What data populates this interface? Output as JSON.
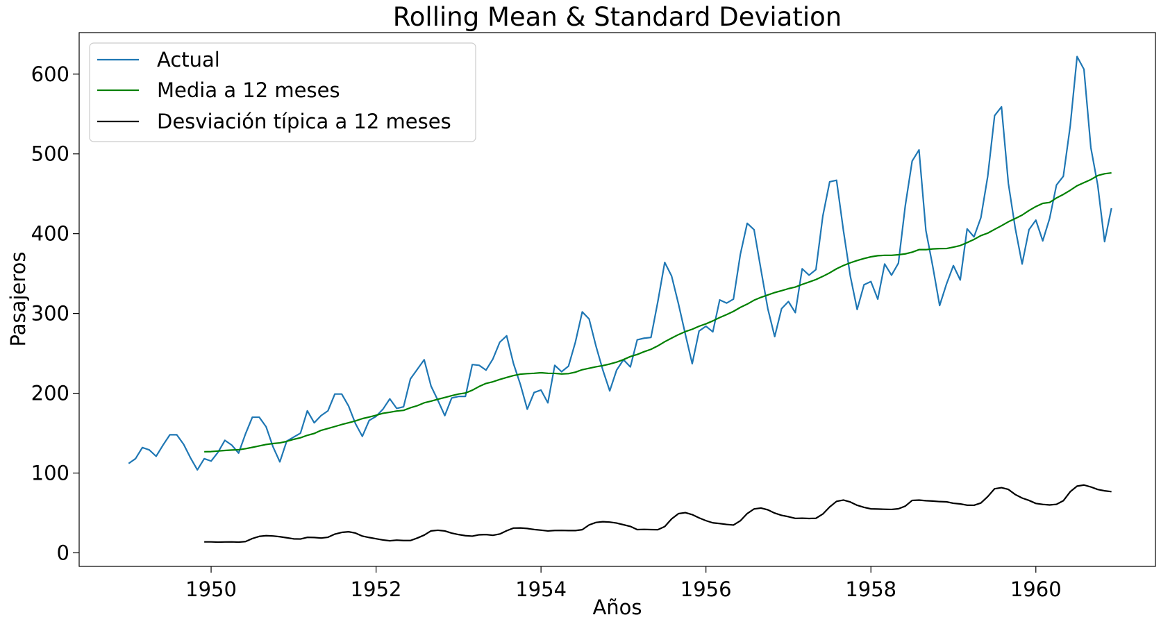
{
  "chart_data": {
    "type": "line",
    "title": "Rolling Mean & Standard Deviation",
    "xlabel": "Años",
    "ylabel": "Pasajeros",
    "xlim": [
      1948.4,
      1961.45
    ],
    "ylim": [
      -17,
      652
    ],
    "x_ticks": [
      1950,
      1952,
      1954,
      1956,
      1958,
      1960
    ],
    "y_ticks": [
      0,
      100,
      200,
      300,
      400,
      500,
      600
    ],
    "grid": false,
    "legend_position": "top-left",
    "start": "1949-01",
    "series": [
      {
        "name": "Actual",
        "color": "#1f77b4",
        "values": [
          112,
          118,
          132,
          129,
          121,
          135,
          148,
          148,
          136,
          119,
          104,
          118,
          115,
          126,
          141,
          135,
          125,
          149,
          170,
          170,
          158,
          133,
          114,
          140,
          145,
          150,
          178,
          163,
          172,
          178,
          199,
          199,
          184,
          162,
          146,
          166,
          171,
          180,
          193,
          181,
          183,
          218,
          230,
          242,
          209,
          191,
          172,
          194,
          196,
          196,
          236,
          235,
          229,
          243,
          264,
          272,
          237,
          211,
          180,
          201,
          204,
          188,
          235,
          227,
          234,
          264,
          302,
          293,
          259,
          229,
          203,
          229,
          242,
          233,
          267,
          269,
          270,
          315,
          364,
          347,
          312,
          274,
          237,
          278,
          284,
          277,
          317,
          313,
          318,
          374,
          413,
          405,
          355,
          306,
          271,
          306,
          315,
          301,
          356,
          348,
          355,
          422,
          465,
          467,
          404,
          347,
          305,
          336,
          340,
          318,
          362,
          348,
          363,
          435,
          491,
          505,
          404,
          359,
          310,
          337,
          360,
          342,
          406,
          396,
          420,
          472,
          548,
          559,
          463,
          407,
          362,
          405,
          417,
          391,
          419,
          461,
          472,
          535,
          622,
          606,
          508,
          461,
          390,
          432
        ]
      },
      {
        "name": "Media a 12 meses",
        "color": "#008000",
        "values": [
          null,
          null,
          null,
          null,
          null,
          null,
          null,
          null,
          null,
          null,
          null,
          126.7,
          126.9,
          127.6,
          128.3,
          128.8,
          129.2,
          130.5,
          132.2,
          134.0,
          135.8,
          137.0,
          137.8,
          139.7,
          142.2,
          144.2,
          147.3,
          149.6,
          153.5,
          155.9,
          158.3,
          160.8,
          163.0,
          165.3,
          168.2,
          170.2,
          172.4,
          174.9,
          176.2,
          177.7,
          178.6,
          181.8,
          184.4,
          188.0,
          190.1,
          192.5,
          194.7,
          197.0,
          199.0,
          200.3,
          203.8,
          208.5,
          212.3,
          214.4,
          217.3,
          219.8,
          222.2,
          223.9,
          224.6,
          225.0,
          225.7,
          225.0,
          224.9,
          224.2,
          224.6,
          226.4,
          229.5,
          231.3,
          233.2,
          234.7,
          236.6,
          239.0,
          242.2,
          246.0,
          248.6,
          252.1,
          255.1,
          259.4,
          264.6,
          269.1,
          273.5,
          277.3,
          280.2,
          284.0,
          287.0,
          290.7,
          294.9,
          298.6,
          302.6,
          307.6,
          311.7,
          316.6,
          320.2,
          323.2,
          326.2,
          328.5,
          331.1,
          333.1,
          336.4,
          339.4,
          342.5,
          346.5,
          350.9,
          356.0,
          360.1,
          363.5,
          366.4,
          368.9,
          371.0,
          372.4,
          372.9,
          372.9,
          373.6,
          374.7,
          376.8,
          380.0,
          380.0,
          380.9,
          381.3,
          381.4,
          383.1,
          385.1,
          388.8,
          392.8,
          397.6,
          400.7,
          405.4,
          410.0,
          414.9,
          419.0,
          423.3,
          429.0,
          434.0,
          438.0,
          439.1,
          444.8,
          449.2,
          454.4,
          460.1,
          464.0,
          467.8,
          472.8,
          475.1,
          476.2
        ]
      },
      {
        "name": "Desviación típica a 12 meses",
        "color": "#000000",
        "values": [
          null,
          null,
          null,
          null,
          null,
          null,
          null,
          null,
          null,
          null,
          null,
          13.7,
          13.7,
          13.4,
          13.6,
          13.7,
          13.4,
          14.1,
          17.9,
          20.6,
          21.5,
          21.1,
          20.2,
          18.9,
          17.5,
          17.3,
          19.4,
          19.2,
          18.5,
          19.5,
          23.4,
          25.6,
          26.4,
          24.8,
          21.0,
          19.2,
          17.6,
          16.1,
          15.1,
          15.9,
          15.4,
          15.4,
          18.5,
          22.2,
          27.5,
          28.3,
          27.4,
          24.7,
          22.9,
          21.5,
          20.9,
          22.6,
          22.9,
          22.0,
          23.6,
          27.7,
          31.0,
          31.2,
          30.5,
          29.2,
          28.4,
          27.4,
          28.0,
          28.1,
          27.9,
          27.9,
          29.0,
          35.0,
          38.1,
          39.0,
          38.5,
          37.3,
          35.2,
          33.1,
          29.1,
          29.3,
          29.1,
          29.0,
          32.9,
          42.5,
          49.1,
          50.4,
          47.9,
          43.8,
          40.3,
          37.6,
          36.7,
          35.6,
          34.8,
          40.1,
          49.2,
          55.0,
          56.1,
          53.9,
          49.8,
          47.0,
          45.3,
          43.2,
          43.4,
          43.0,
          43.3,
          48.6,
          57.5,
          64.5,
          66.1,
          63.7,
          59.6,
          57.0,
          55.1,
          54.9,
          54.6,
          54.4,
          55.2,
          58.5,
          65.7,
          66.1,
          65.3,
          64.9,
          64.2,
          63.9,
          62.1,
          61.3,
          59.7,
          59.6,
          62.4,
          70.5,
          80.3,
          81.7,
          79.5,
          73.1,
          68.7,
          65.7,
          61.9,
          60.7,
          60.0,
          60.8,
          65.3,
          76.6,
          83.6,
          85.0,
          82.6,
          79.4,
          77.7,
          76.7
        ]
      }
    ]
  }
}
